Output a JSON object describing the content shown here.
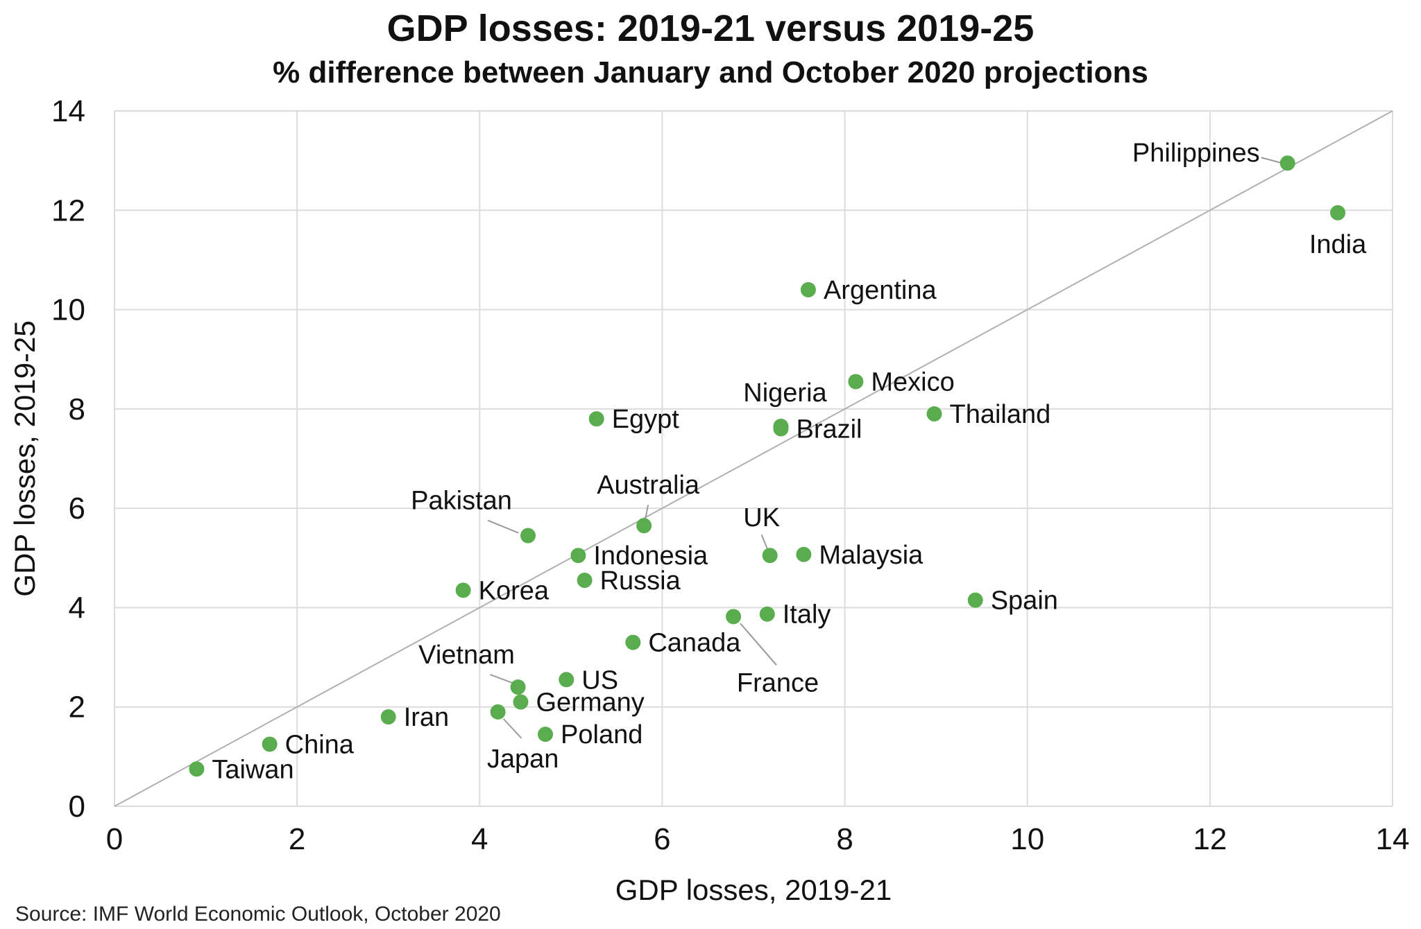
{
  "chart_data": {
    "type": "scatter",
    "title": "GDP losses: 2019-21 versus 2019-25",
    "subtitle": "% difference between January and October 2020 projections",
    "xlabel": "GDP losses, 2019-21",
    "ylabel": "GDP losses, 2019-25",
    "xlim": [
      0,
      14
    ],
    "ylim": [
      0,
      14
    ],
    "xticks": [
      "0",
      "2",
      "4",
      "6",
      "8",
      "10",
      "12",
      "14"
    ],
    "yticks": [
      "0",
      "2",
      "4",
      "6",
      "8",
      "10",
      "12",
      "14"
    ],
    "grid": true,
    "reference_line": "y = x",
    "marker_color": "#5aad4e",
    "gridline_color": "#dcdcdc",
    "reference_line_color": "#b0b0b0",
    "points": [
      {
        "label": "Philippines",
        "x": 12.85,
        "y": 12.95
      },
      {
        "label": "India",
        "x": 13.4,
        "y": 11.95
      },
      {
        "label": "Argentina",
        "x": 7.6,
        "y": 10.4
      },
      {
        "label": "Mexico",
        "x": 8.12,
        "y": 8.55
      },
      {
        "label": "Thailand",
        "x": 8.98,
        "y": 7.9
      },
      {
        "label": "Nigeria",
        "x": 7.3,
        "y": 7.65
      },
      {
        "label": "Brazil",
        "x": 7.3,
        "y": 7.6
      },
      {
        "label": "Egypt",
        "x": 5.28,
        "y": 7.8
      },
      {
        "label": "Australia",
        "x": 5.8,
        "y": 5.65
      },
      {
        "label": "Pakistan",
        "x": 4.53,
        "y": 5.45
      },
      {
        "label": "Indonesia",
        "x": 5.08,
        "y": 5.05
      },
      {
        "label": "UK",
        "x": 7.18,
        "y": 5.05
      },
      {
        "label": "Malaysia",
        "x": 7.55,
        "y": 5.07
      },
      {
        "label": "Russia",
        "x": 5.15,
        "y": 4.55
      },
      {
        "label": "Korea",
        "x": 3.82,
        "y": 4.35
      },
      {
        "label": "Spain",
        "x": 9.43,
        "y": 4.15
      },
      {
        "label": "Italy",
        "x": 7.15,
        "y": 3.87
      },
      {
        "label": "France",
        "x": 6.78,
        "y": 3.82
      },
      {
        "label": "Canada",
        "x": 5.68,
        "y": 3.3
      },
      {
        "label": "US",
        "x": 4.95,
        "y": 2.55
      },
      {
        "label": "Vietnam",
        "x": 4.42,
        "y": 2.4
      },
      {
        "label": "Germany",
        "x": 4.45,
        "y": 2.1
      },
      {
        "label": "Iran",
        "x": 3.0,
        "y": 1.8
      },
      {
        "label": "Japan",
        "x": 4.2,
        "y": 1.9
      },
      {
        "label": "Poland",
        "x": 4.72,
        "y": 1.45
      },
      {
        "label": "China",
        "x": 1.7,
        "y": 1.25
      },
      {
        "label": "Taiwan",
        "x": 0.9,
        "y": 0.75
      }
    ],
    "source": "Source: IMF World Economic Outlook, October 2020"
  }
}
